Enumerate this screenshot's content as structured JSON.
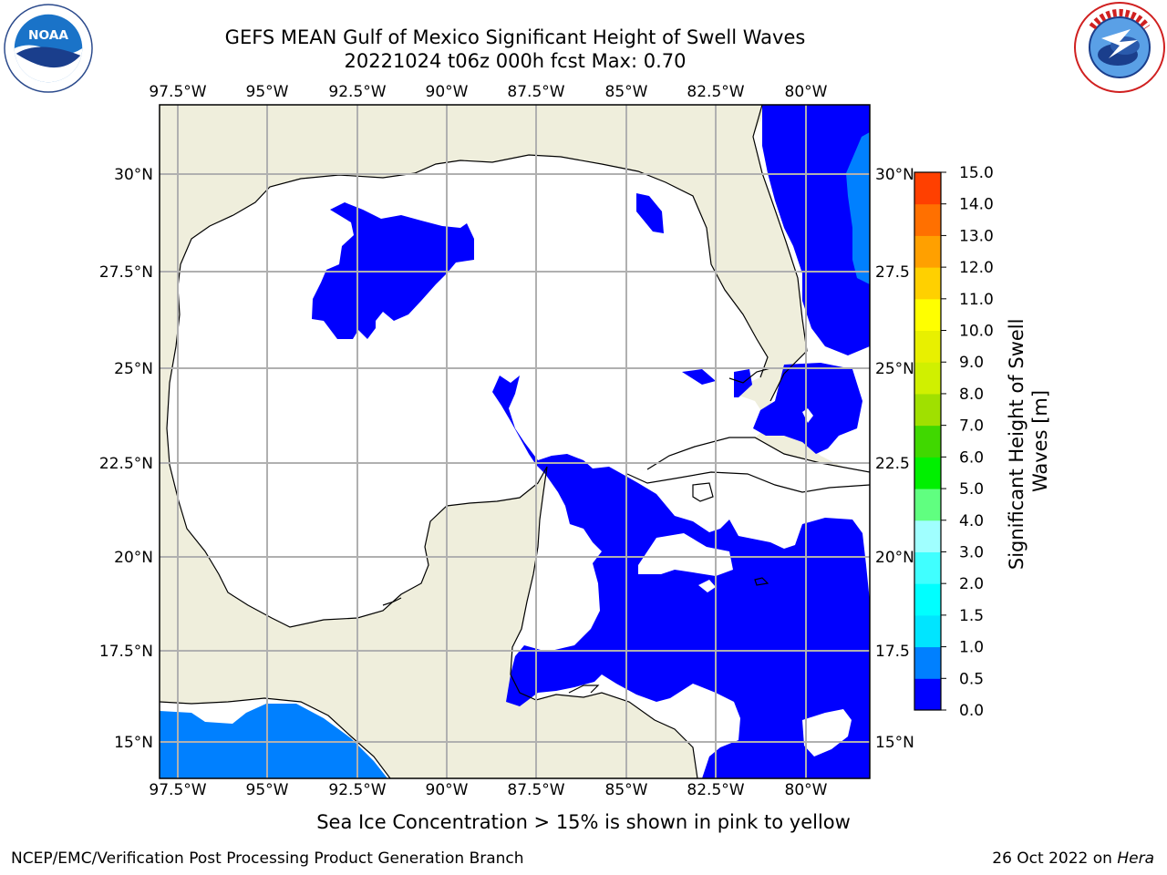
{
  "title": {
    "line1": "GEFS MEAN Gulf of Mexico Significant Height of Swell Waves",
    "line2": "20221024 t06z 000h fcst   Max: 0.70"
  },
  "map": {
    "lon_ticks": [
      "97.5°W",
      "95°W",
      "92.5°W",
      "90°W",
      "87.5°W",
      "85°W",
      "82.5°W",
      "80°W"
    ],
    "lat_ticks_left": [
      "30°N",
      "27.5°N",
      "25°N",
      "22.5°N",
      "20°N",
      "17.5°N",
      "15°N"
    ],
    "lat_ticks_right": [
      "30°N",
      "27.5",
      "25°N",
      "22.5",
      "20°N",
      "17.5",
      "15°N"
    ],
    "colors": {
      "land": "#efeedc",
      "sea_zero": "#ffffff",
      "swell_0_0_5": "#0000ff",
      "swell_0_5_1_0": "#0080ff",
      "grid": "#b0b0b0"
    }
  },
  "colorbar": {
    "label_line1": "Significant Height of Swell",
    "label_line2": "Waves [m]",
    "ticks": [
      "0.0",
      "0.5",
      "1.0",
      "1.5",
      "2.0",
      "3.0",
      "4.0",
      "5.0",
      "6.0",
      "7.0",
      "8.0",
      "9.0",
      "10.0",
      "11.0",
      "12.0",
      "13.0",
      "14.0",
      "15.0"
    ],
    "colors": [
      "#0000ff",
      "#0080ff",
      "#00e5ff",
      "#00ffff",
      "#40ffff",
      "#a0ffff",
      "#60ff80",
      "#00f000",
      "#40d800",
      "#a0e000",
      "#d0f000",
      "#e8f000",
      "#ffff00",
      "#ffd000",
      "#ffa000",
      "#ff7000",
      "#ff4000",
      "#ff0000"
    ]
  },
  "note": "Sea Ice Concentration > 15% is shown in pink to yellow",
  "footer": {
    "left": "NCEP/EMC/Verification Post Processing Product Generation Branch",
    "right_prefix": "26 Oct 2022 on ",
    "right_host": "Hera"
  }
}
